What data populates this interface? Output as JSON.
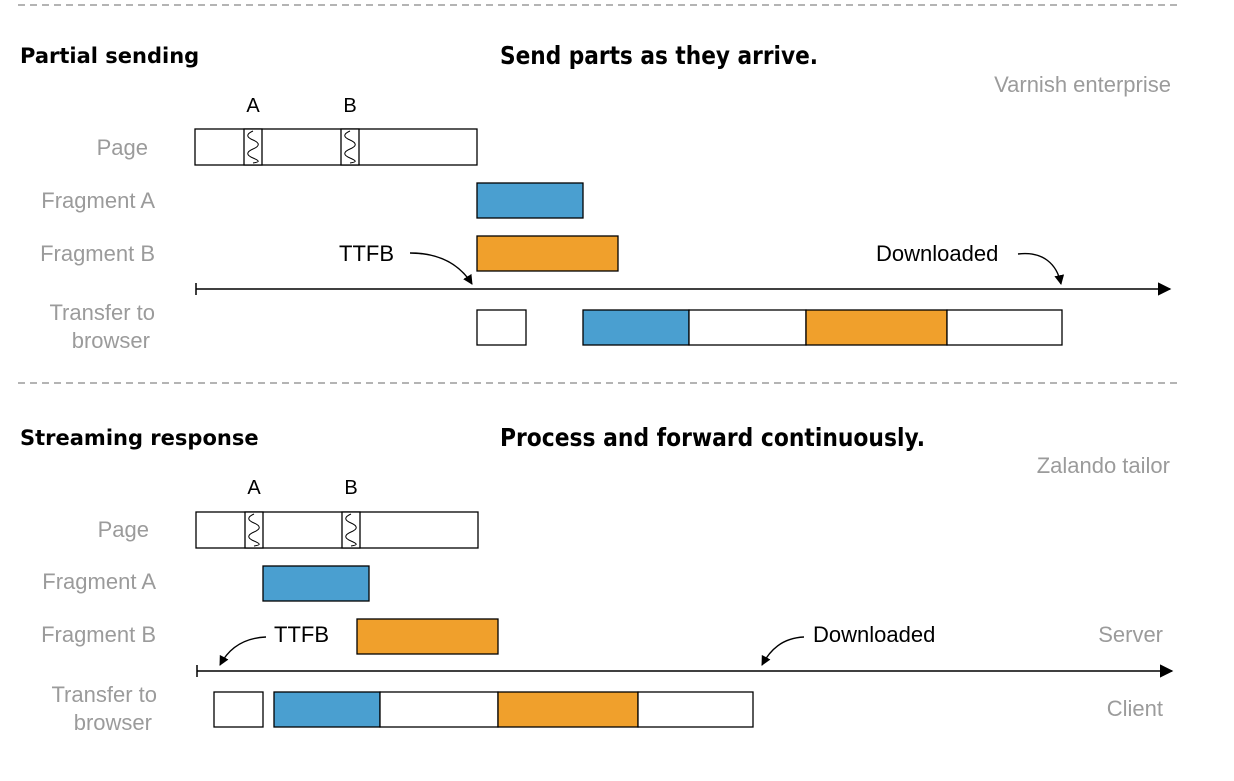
{
  "colors": {
    "fragment_a": "#4a9fd0",
    "fragment_b": "#f0a02c",
    "row_label": "#9b9b9b",
    "separator": "#9b9b9b",
    "outline": "#000000"
  },
  "top": {
    "section_title": "Partial sending",
    "headline": "Send parts as they arrive.",
    "tool_label": "Varnish enterprise",
    "marker_a": "A",
    "marker_b": "B",
    "rows": {
      "page": "Page",
      "fragment_a": "Fragment A",
      "fragment_b": "Fragment B",
      "transfer_line1": "Transfer to",
      "transfer_line2": "browser"
    },
    "ttfb_label": "TTFB",
    "downloaded_label": "Downloaded"
  },
  "bottom": {
    "section_title": "Streaming response",
    "headline": "Process and forward continuously.",
    "tool_label": "Zalando tailor",
    "marker_a": "A",
    "marker_b": "B",
    "rows": {
      "page": "Page",
      "fragment_a": "Fragment A",
      "fragment_b": "Fragment B",
      "transfer_line1": "Transfer to",
      "transfer_line2": "browser"
    },
    "ttfb_label": "TTFB",
    "downloaded_label": "Downloaded",
    "server_label": "Server",
    "client_label": "Client"
  }
}
